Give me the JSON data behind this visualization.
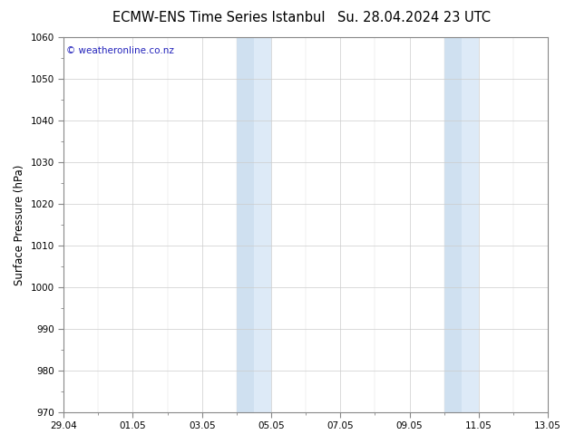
{
  "title_left": "ECMW-ENS Time Series Istanbul",
  "title_right": "Su. 28.04.2024 23 UTC",
  "ylabel": "Surface Pressure (hPa)",
  "ylim": [
    970,
    1060
  ],
  "ytick_step": 10,
  "xlim_start": 0,
  "xlim_end": 14,
  "xtick_labels": [
    "29.04",
    "01.05",
    "03.05",
    "05.05",
    "07.05",
    "09.05",
    "11.05",
    "13.05"
  ],
  "xtick_positions": [
    0,
    2,
    4,
    6,
    8,
    10,
    12,
    14
  ],
  "shaded_bands": [
    [
      5.0,
      5.5
    ],
    [
      5.5,
      6.0
    ],
    [
      11.0,
      11.5
    ],
    [
      11.5,
      12.0
    ]
  ],
  "band_colors": [
    "#cfe0f0",
    "#ddeaf7",
    "#cfe0f0",
    "#ddeaf7"
  ],
  "watermark_text": "© weatheronline.co.nz",
  "watermark_color": "#2222bb",
  "watermark_fontsize": 7.5,
  "bg_color": "#ffffff",
  "plot_bg_color": "#ffffff",
  "title_fontsize": 10.5,
  "axis_label_fontsize": 8.5,
  "tick_fontsize": 7.5,
  "grid_color": "#cccccc",
  "minor_tick_color": "#dddddd",
  "spine_color": "#888888"
}
